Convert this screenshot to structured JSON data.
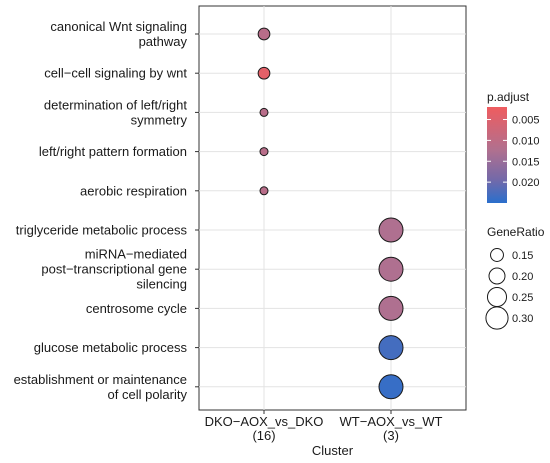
{
  "chart_data": {
    "type": "scatter",
    "title": "",
    "xlabel": "Cluster",
    "ylabel": "",
    "x_categories": [
      {
        "id": "DKO-AOX_vs_DKO",
        "label_lines": [
          "DKO−AOX_vs_DKO",
          "(16)"
        ]
      },
      {
        "id": "WT-AOX_vs_WT",
        "label_lines": [
          "WT−AOX_vs_WT",
          "(3)"
        ]
      }
    ],
    "y_categories": [
      {
        "label_lines": [
          "canonical Wnt signaling",
          "pathway"
        ]
      },
      {
        "label_lines": [
          "cell−cell signaling by wnt"
        ]
      },
      {
        "label_lines": [
          "determination of left/right",
          "symmetry"
        ]
      },
      {
        "label_lines": [
          "left/right pattern formation"
        ]
      },
      {
        "label_lines": [
          "aerobic respiration"
        ]
      },
      {
        "label_lines": [
          "triglyceride metabolic process"
        ]
      },
      {
        "label_lines": [
          "miRNA−mediated",
          "post−transcriptional gene",
          "silencing"
        ]
      },
      {
        "label_lines": [
          "centrosome cycle"
        ]
      },
      {
        "label_lines": [
          "glucose metabolic process"
        ]
      },
      {
        "label_lines": [
          "establishment or maintenance",
          "of cell polarity"
        ]
      }
    ],
    "points": [
      {
        "cluster": 0,
        "term": 0,
        "gene_ratio": 0.13,
        "p_adjust": 0.011
      },
      {
        "cluster": 0,
        "term": 1,
        "gene_ratio": 0.13,
        "p_adjust": 0.004
      },
      {
        "cluster": 0,
        "term": 2,
        "gene_ratio": 0.07,
        "p_adjust": 0.011
      },
      {
        "cluster": 0,
        "term": 3,
        "gene_ratio": 0.07,
        "p_adjust": 0.011
      },
      {
        "cluster": 0,
        "term": 4,
        "gene_ratio": 0.07,
        "p_adjust": 0.011
      },
      {
        "cluster": 1,
        "term": 5,
        "gene_ratio": 0.33,
        "p_adjust": 0.0125
      },
      {
        "cluster": 1,
        "term": 6,
        "gene_ratio": 0.33,
        "p_adjust": 0.0125
      },
      {
        "cluster": 1,
        "term": 7,
        "gene_ratio": 0.33,
        "p_adjust": 0.0125
      },
      {
        "cluster": 1,
        "term": 8,
        "gene_ratio": 0.33,
        "p_adjust": 0.023
      },
      {
        "cluster": 1,
        "term": 9,
        "gene_ratio": 0.33,
        "p_adjust": 0.024
      }
    ],
    "color_legend": {
      "title": "p.adjust",
      "ticks": [
        "0.005",
        "0.010",
        "0.015",
        "0.020"
      ],
      "tick_values": [
        0.005,
        0.01,
        0.015,
        0.02
      ],
      "range": [
        0.002,
        0.025
      ],
      "low_color": "#e8545a",
      "high_color": "#2c6fc6"
    },
    "size_legend": {
      "title": "GeneRatio",
      "ticks": [
        "0.15",
        "0.20",
        "0.25",
        "0.30"
      ],
      "tick_values": [
        0.15,
        0.2,
        0.25,
        0.3
      ]
    },
    "grid": true,
    "legend_position": "right"
  }
}
